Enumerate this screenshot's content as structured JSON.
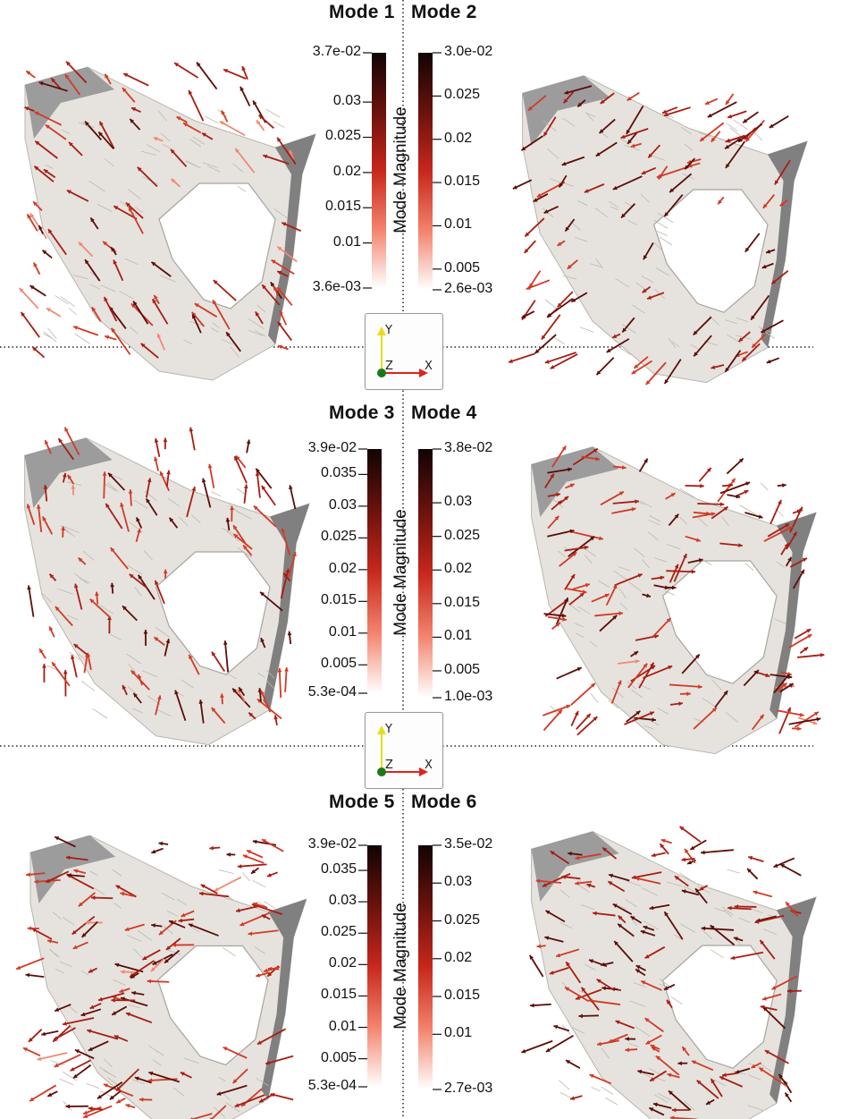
{
  "colors": {
    "bar_top": "#100403",
    "bar_mid": "#c8271c",
    "bar_bottom": "#ffffff",
    "surface": "#e6e3de",
    "surface_dark": "#6e6e70",
    "arrow_light": "#f08a72",
    "arrow_mid": "#d23a25",
    "arrow_dark": "#5c0d08",
    "axis_x": "#e0231b",
    "axis_y": "#e8dc1a",
    "axis_z": "#1a7a1a"
  },
  "colorbar_title": "Mode Magnitude",
  "axes_widget": {
    "x": "X",
    "y": "Y",
    "z": "Z",
    "icon": "orientation-axes-icon"
  },
  "modes": [
    {
      "title": "Mode 1",
      "range": [
        0.0036,
        0.037
      ],
      "ticks": [
        {
          "value": 0.037,
          "label": "3.7e-02"
        },
        {
          "value": 0.03,
          "label": "0.03"
        },
        {
          "value": 0.025,
          "label": "0.025"
        },
        {
          "value": 0.02,
          "label": "0.02"
        },
        {
          "value": 0.015,
          "label": "0.015"
        },
        {
          "value": 0.01,
          "label": "0.01"
        },
        {
          "value": 0.0036,
          "label": "3.6e-03"
        }
      ]
    },
    {
      "title": "Mode 2",
      "range": [
        0.0026,
        0.03
      ],
      "ticks": [
        {
          "value": 0.03,
          "label": "3.0e-02"
        },
        {
          "value": 0.025,
          "label": "0.025"
        },
        {
          "value": 0.02,
          "label": "0.02"
        },
        {
          "value": 0.015,
          "label": "0.015"
        },
        {
          "value": 0.01,
          "label": "0.01"
        },
        {
          "value": 0.005,
          "label": "0.005"
        },
        {
          "value": 0.0026,
          "label": "2.6e-03"
        }
      ]
    },
    {
      "title": "Mode 3",
      "range": [
        0.00053,
        0.039
      ],
      "ticks": [
        {
          "value": 0.039,
          "label": "3.9e-02"
        },
        {
          "value": 0.035,
          "label": "0.035"
        },
        {
          "value": 0.03,
          "label": "0.03"
        },
        {
          "value": 0.025,
          "label": "0.025"
        },
        {
          "value": 0.02,
          "label": "0.02"
        },
        {
          "value": 0.015,
          "label": "0.015"
        },
        {
          "value": 0.01,
          "label": "0.01"
        },
        {
          "value": 0.005,
          "label": "0.005"
        },
        {
          "value": 0.00053,
          "label": "5.3e-04"
        }
      ]
    },
    {
      "title": "Mode 4",
      "range": [
        0.001,
        0.038
      ],
      "ticks": [
        {
          "value": 0.038,
          "label": "3.8e-02"
        },
        {
          "value": 0.03,
          "label": "0.03"
        },
        {
          "value": 0.025,
          "label": "0.025"
        },
        {
          "value": 0.02,
          "label": "0.02"
        },
        {
          "value": 0.015,
          "label": "0.015"
        },
        {
          "value": 0.01,
          "label": "0.01"
        },
        {
          "value": 0.005,
          "label": "0.005"
        },
        {
          "value": 0.001,
          "label": "1.0e-03"
        }
      ]
    },
    {
      "title": "Mode 5",
      "range": [
        0.00053,
        0.039
      ],
      "ticks": [
        {
          "value": 0.039,
          "label": "3.9e-02"
        },
        {
          "value": 0.035,
          "label": "0.035"
        },
        {
          "value": 0.03,
          "label": "0.03"
        },
        {
          "value": 0.025,
          "label": "0.025"
        },
        {
          "value": 0.02,
          "label": "0.02"
        },
        {
          "value": 0.015,
          "label": "0.015"
        },
        {
          "value": 0.01,
          "label": "0.01"
        },
        {
          "value": 0.005,
          "label": "0.005"
        },
        {
          "value": 0.00053,
          "label": "5.3e-04"
        }
      ]
    },
    {
      "title": "Mode 6",
      "range": [
        0.0027,
        0.035
      ],
      "ticks": [
        {
          "value": 0.035,
          "label": "3.5e-02"
        },
        {
          "value": 0.03,
          "label": "0.03"
        },
        {
          "value": 0.025,
          "label": "0.025"
        },
        {
          "value": 0.02,
          "label": "0.02"
        },
        {
          "value": 0.015,
          "label": "0.015"
        },
        {
          "value": 0.01,
          "label": "0.01"
        },
        {
          "value": 0.0027,
          "label": "2.7e-03"
        }
      ]
    }
  ]
}
